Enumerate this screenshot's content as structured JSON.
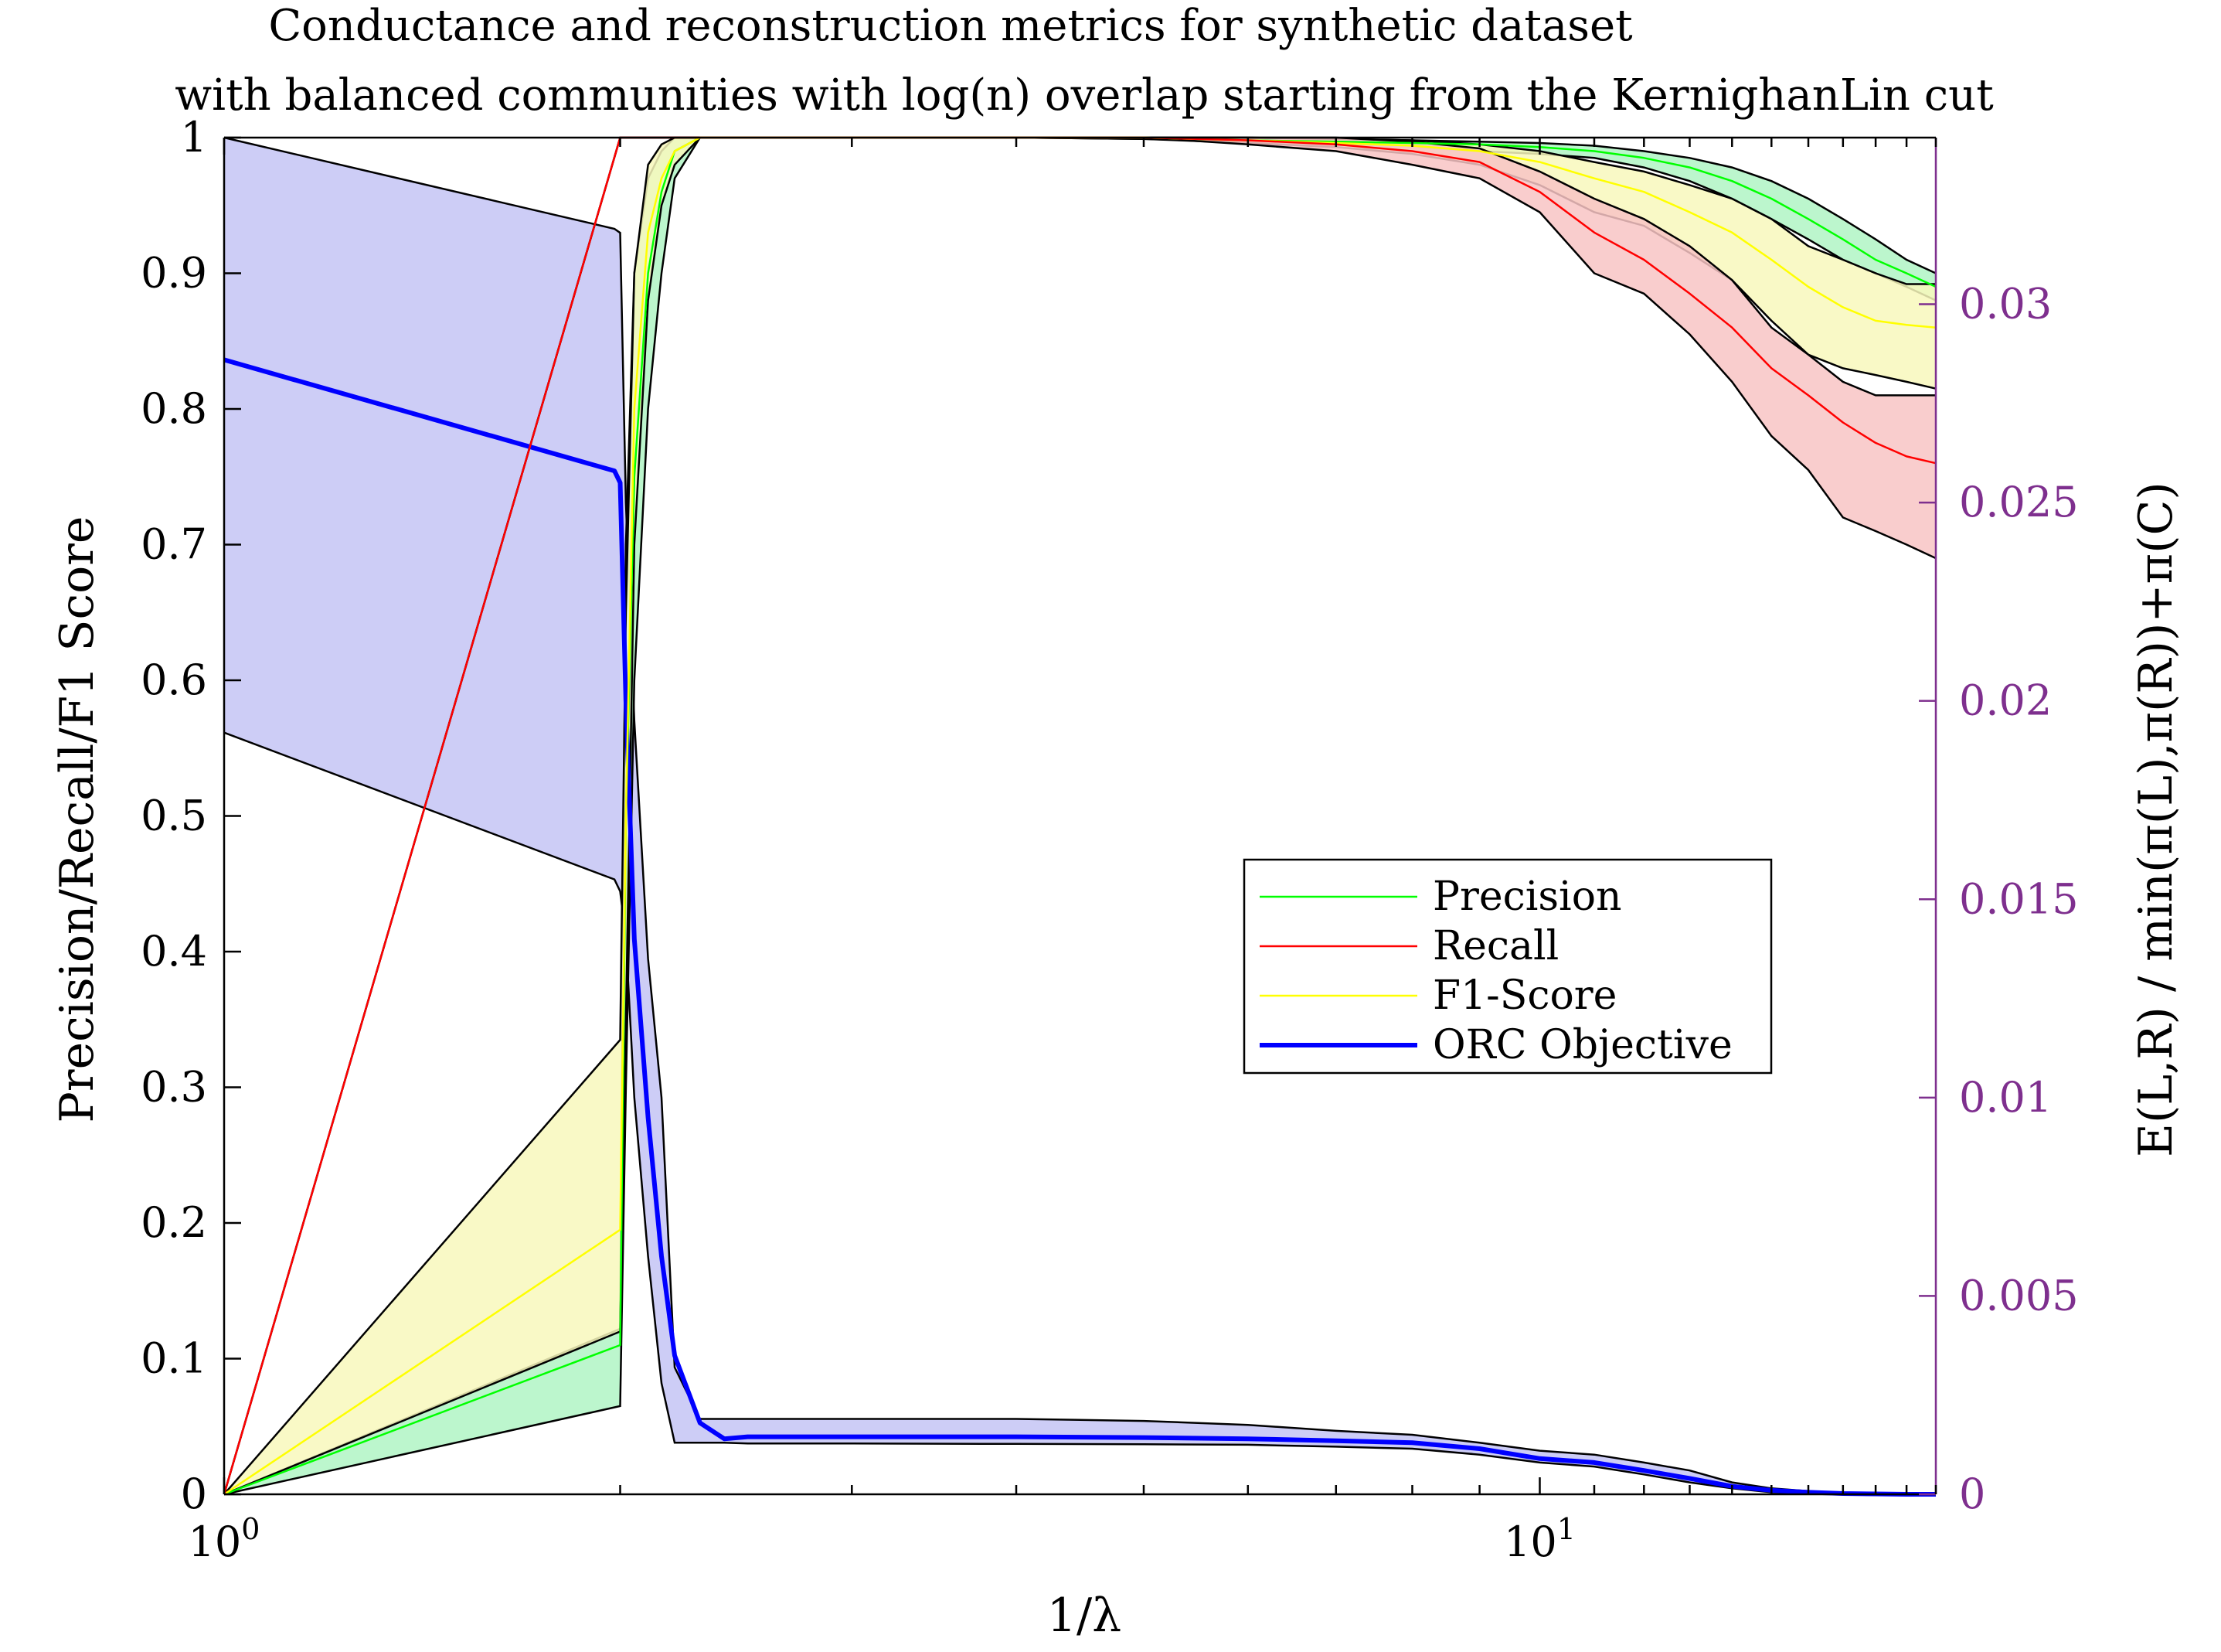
{
  "chart_data": {
    "type": "line",
    "title": [
      "Conductance and reconstruction metrics for synthetic dataset",
      "with balanced communities with log(n) overlap starting from the KernighanLin cut"
    ],
    "xlabel": "1/λ",
    "ylabel": "Precision/Recall/F1 Score",
    "ylabel_right": "E(L,R) / min(π(L),π(R))+π(C)",
    "xscale": "log",
    "xlim": [
      1,
      20
    ],
    "ylim": [
      0,
      1
    ],
    "ylim_right": [
      0,
      0.0342
    ],
    "x_tick_labels": [
      "10^0",
      "10^1"
    ],
    "y_tick_labels": [
      "0",
      "0.1",
      "0.2",
      "0.3",
      "0.4",
      "0.5",
      "0.6",
      "0.7",
      "0.8",
      "0.9",
      "1"
    ],
    "y_right_tick_labels": [
      "0",
      "0.005",
      "0.01",
      "0.015",
      "0.02",
      "0.025",
      "0.03"
    ],
    "legend_position": "center-right",
    "grid": false,
    "series": [
      {
        "name": "Precision",
        "axis": "left",
        "color": "#00ff00",
        "fill": "#b0f5c4",
        "x": [
          1,
          2,
          2.02,
          2.05,
          2.1,
          2.15,
          2.2,
          2.3,
          2.5,
          3,
          4,
          5,
          6,
          7,
          8,
          9,
          10,
          11,
          12,
          13,
          14,
          15,
          16,
          17,
          18,
          19,
          20
        ],
        "y": [
          0,
          0.11,
          0.5,
          0.75,
          0.9,
          0.96,
          0.99,
          1,
          1,
          1,
          1,
          1,
          0.998,
          0.997,
          0.996,
          0.995,
          0.993,
          0.99,
          0.985,
          0.978,
          0.968,
          0.955,
          0.94,
          0.925,
          0.91,
          0.9,
          0.89
        ],
        "lower": [
          0,
          0.065,
          0.3,
          0.6,
          0.8,
          0.9,
          0.97,
          1,
          1,
          1,
          1,
          0.999,
          0.997,
          0.995,
          0.993,
          0.99,
          0.988,
          0.985,
          0.978,
          0.968,
          0.955,
          0.94,
          0.925,
          0.91,
          0.9,
          0.89,
          0.88
        ],
        "upper": [
          0,
          0.122,
          0.7,
          0.9,
          0.97,
          0.99,
          1,
          1,
          1,
          1,
          1,
          1,
          1,
          0.999,
          0.998,
          0.997,
          0.996,
          0.994,
          0.99,
          0.985,
          0.978,
          0.968,
          0.955,
          0.94,
          0.925,
          0.91,
          0.9
        ]
      },
      {
        "name": "Recall",
        "axis": "left",
        "color": "#ff0000",
        "fill": "#f8c4c4",
        "x": [
          1,
          2,
          2.5,
          3,
          4,
          5,
          6,
          7,
          8,
          9,
          10,
          11,
          12,
          13,
          14,
          15,
          16,
          17,
          18,
          19,
          20
        ],
        "y": [
          0,
          1,
          1,
          1,
          1,
          1,
          0.998,
          0.995,
          0.99,
          0.982,
          0.96,
          0.93,
          0.91,
          0.885,
          0.86,
          0.83,
          0.81,
          0.79,
          0.775,
          0.765,
          0.76
        ],
        "lower": [
          0,
          1,
          1,
          1,
          1,
          1,
          0.995,
          0.99,
          0.98,
          0.97,
          0.945,
          0.9,
          0.885,
          0.855,
          0.82,
          0.78,
          0.755,
          0.72,
          0.71,
          0.7,
          0.69
        ],
        "upper": [
          0,
          1,
          1,
          1,
          1,
          1,
          1,
          1,
          0.997,
          0.992,
          0.975,
          0.955,
          0.94,
          0.92,
          0.895,
          0.86,
          0.84,
          0.82,
          0.81,
          0.81,
          0.81
        ]
      },
      {
        "name": "F1-Score",
        "axis": "left",
        "color": "#ffff00",
        "fill": "#f8f8bc",
        "x": [
          1,
          2,
          2.02,
          2.05,
          2.1,
          2.15,
          2.2,
          2.3,
          2.5,
          3,
          4,
          5,
          6,
          7,
          8,
          9,
          10,
          11,
          12,
          13,
          14,
          15,
          16,
          17,
          18,
          19,
          20
        ],
        "y": [
          0,
          0.195,
          0.5,
          0.8,
          0.93,
          0.97,
          0.99,
          1,
          1,
          1,
          1,
          1,
          0.998,
          0.996,
          0.994,
          0.99,
          0.982,
          0.97,
          0.96,
          0.945,
          0.93,
          0.91,
          0.89,
          0.875,
          0.865,
          0.862,
          0.86
        ],
        "lower": [
          0,
          0.12,
          0.35,
          0.7,
          0.88,
          0.95,
          0.98,
          1,
          1,
          1,
          1,
          0.999,
          0.996,
          0.993,
          0.988,
          0.98,
          0.965,
          0.945,
          0.935,
          0.915,
          0.895,
          0.865,
          0.84,
          0.83,
          0.825,
          0.82,
          0.815
        ],
        "upper": [
          0,
          0.335,
          0.65,
          0.9,
          0.98,
          0.995,
          1,
          1,
          1,
          1,
          1,
          1,
          1,
          0.999,
          0.998,
          0.995,
          0.99,
          0.982,
          0.975,
          0.965,
          0.955,
          0.94,
          0.92,
          0.91,
          0.9,
          0.892,
          0.892
        ]
      },
      {
        "name": "ORC Objective",
        "axis": "right",
        "color": "#0000ff",
        "fill": "#c4c4f5",
        "x": [
          1,
          1.98,
          2,
          2.02,
          2.05,
          2.1,
          2.15,
          2.2,
          2.3,
          2.4,
          2.5,
          3,
          4,
          5,
          6,
          7,
          8,
          9,
          10,
          11,
          12,
          13,
          14,
          15,
          16,
          17,
          18,
          19,
          20
        ],
        "y": [
          0.0286,
          0.0258,
          0.0255,
          0.02,
          0.014,
          0.0095,
          0.006,
          0.0035,
          0.0018,
          0.0014,
          0.00145,
          0.00145,
          0.00145,
          0.00143,
          0.0014,
          0.00135,
          0.0013,
          0.00115,
          0.0009,
          0.0008,
          0.0006,
          0.0004,
          0.0002,
          0.0001,
          5e-05,
          2e-05,
          1e-05,
          0,
          0
        ],
        "lower": [
          0.0192,
          0.0155,
          0.0152,
          0.014,
          0.01,
          0.006,
          0.0028,
          0.0013,
          0.0013,
          0.0013,
          0.00128,
          0.00128,
          0.00127,
          0.00126,
          0.00125,
          0.0012,
          0.00115,
          0.001,
          0.0008,
          0.0007,
          0.0005,
          0.0003,
          0.00015,
          5e-05,
          2e-05,
          1e-05,
          0,
          0,
          0
        ],
        "upper": [
          0.0342,
          0.0319,
          0.0318,
          0.025,
          0.0195,
          0.0135,
          0.01,
          0.0032,
          0.0019,
          0.0019,
          0.0019,
          0.0019,
          0.0019,
          0.00185,
          0.00175,
          0.0016,
          0.0015,
          0.0013,
          0.0011,
          0.001,
          0.0008,
          0.0006,
          0.0003,
          0.00015,
          8e-05,
          4e-05,
          2e-05,
          1e-05,
          0
        ]
      }
    ]
  }
}
